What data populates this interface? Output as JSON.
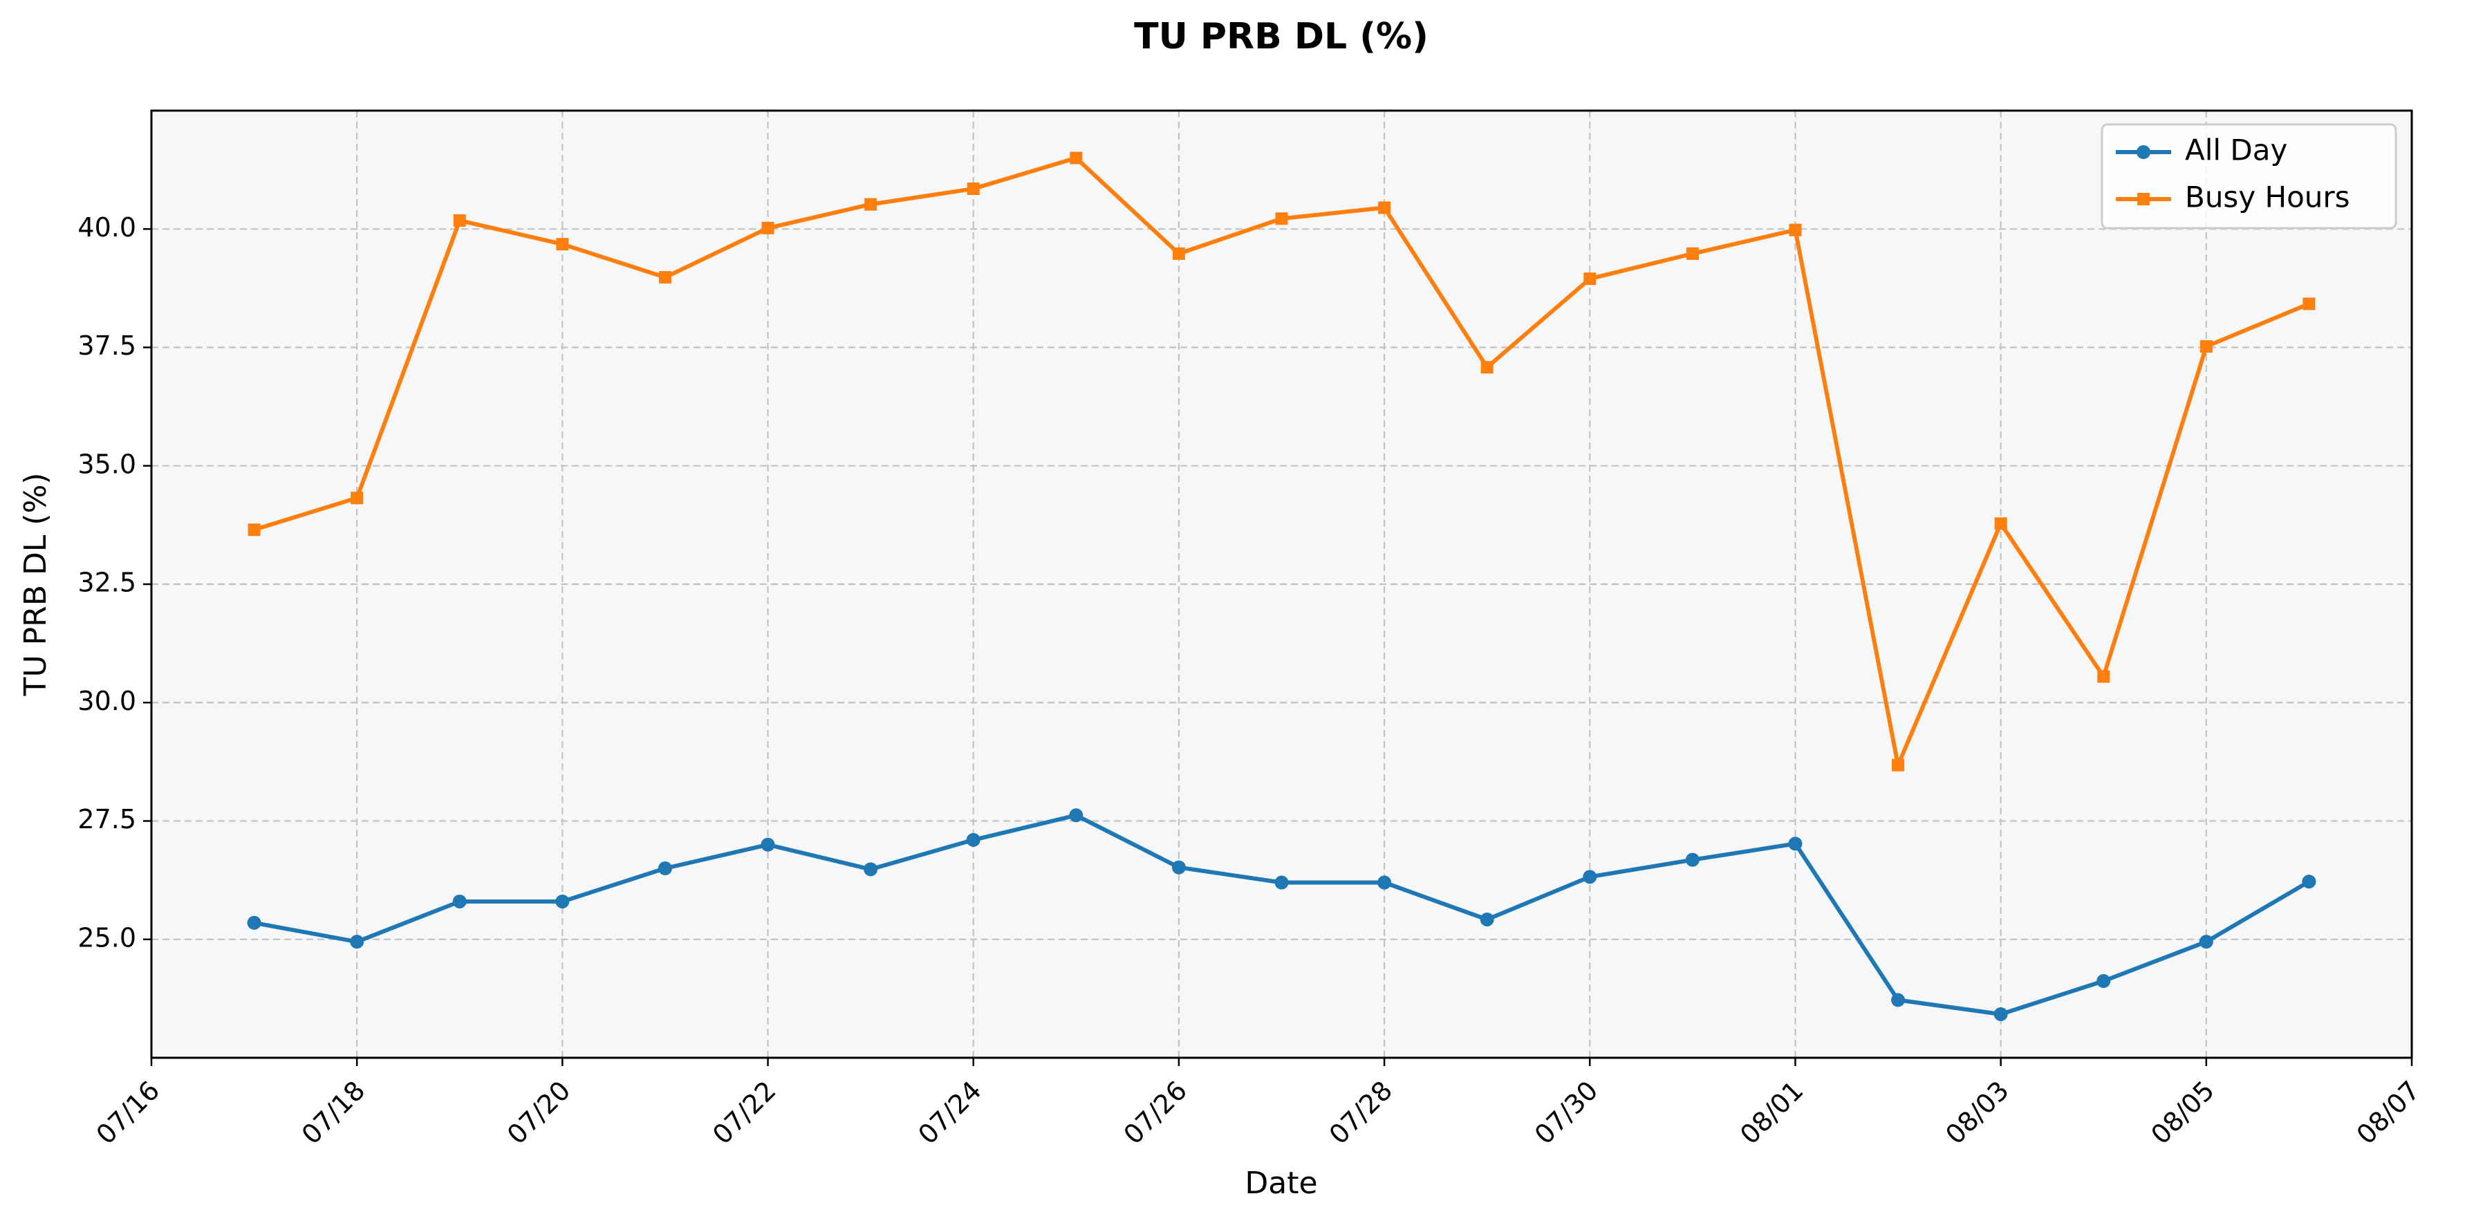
{
  "chart_data": {
    "type": "line",
    "title": "TU PRB DL (%)",
    "xlabel": "Date",
    "ylabel": "TU PRB DL (%)",
    "x_tick_labels": [
      "07/16",
      "07/18",
      "07/20",
      "07/22",
      "07/24",
      "07/26",
      "07/28",
      "07/30",
      "08/01",
      "08/03",
      "08/05",
      "08/07"
    ],
    "y_tick_labels": [
      "25.0",
      "27.5",
      "30.0",
      "32.5",
      "35.0",
      "37.5",
      "40.0"
    ],
    "x": [
      "07/17",
      "07/18",
      "07/19",
      "07/20",
      "07/21",
      "07/22",
      "07/23",
      "07/24",
      "07/25",
      "07/26",
      "07/27",
      "07/28",
      "07/29",
      "07/30",
      "07/31",
      "08/01",
      "08/02",
      "08/03",
      "08/04",
      "08/05",
      "08/06"
    ],
    "ylim": [
      22.5,
      42.5
    ],
    "xlim": [
      "07/16",
      "08/07"
    ],
    "grid": true,
    "legend_position": "top-right",
    "series": [
      {
        "name": "All Day",
        "color": "#1f77b4",
        "marker": "circle",
        "values": [
          25.35,
          24.95,
          25.8,
          25.8,
          26.5,
          27.0,
          26.48,
          27.1,
          27.62,
          26.52,
          26.2,
          26.2,
          25.42,
          26.32,
          26.68,
          27.02,
          23.72,
          23.42,
          24.12,
          24.95,
          26.22
        ]
      },
      {
        "name": "Busy Hours",
        "color": "#ff7f0e",
        "marker": "square",
        "values": [
          33.65,
          34.32,
          40.18,
          39.68,
          38.98,
          40.02,
          40.52,
          40.85,
          41.5,
          39.48,
          40.22,
          40.45,
          37.08,
          38.95,
          39.48,
          39.98,
          28.68,
          33.78,
          30.55,
          37.52,
          38.42
        ]
      }
    ],
    "colors": {
      "plot_background": "#f6f7f9",
      "grid": "#c3c3c3",
      "axes": "#000000"
    }
  }
}
